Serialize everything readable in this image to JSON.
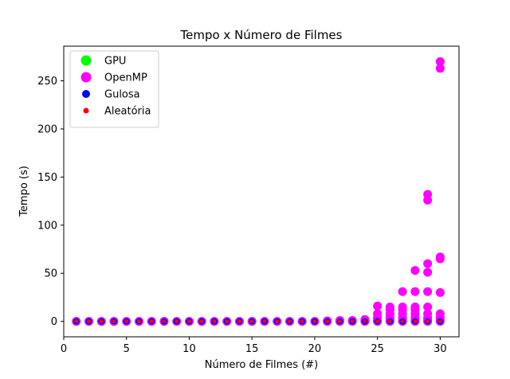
{
  "chart_data": {
    "type": "scatter",
    "title": "Tempo x Número de Filmes",
    "xlabel": "Número de Filmes (#)",
    "ylabel": "Tempo (s)",
    "xlim": [
      0,
      31.5
    ],
    "ylim": [
      -16,
      286
    ],
    "xticks": [
      0,
      5,
      10,
      15,
      20,
      25,
      30
    ],
    "yticks": [
      0,
      50,
      100,
      150,
      200,
      250
    ],
    "legend_position": "upper-left",
    "grid": false,
    "series": [
      {
        "name": "GPU",
        "color": "#00ff00",
        "marker_size": 11,
        "points": [
          [
            1,
            0
          ],
          [
            2,
            0
          ],
          [
            3,
            0
          ],
          [
            4,
            0
          ],
          [
            5,
            0
          ],
          [
            6,
            0
          ],
          [
            7,
            0
          ],
          [
            8,
            0
          ],
          [
            9,
            0
          ],
          [
            10,
            0
          ],
          [
            11,
            0
          ],
          [
            12,
            0
          ],
          [
            13,
            0
          ],
          [
            14,
            0
          ],
          [
            15,
            0
          ],
          [
            16,
            0
          ],
          [
            17,
            0
          ],
          [
            18,
            0
          ],
          [
            19,
            0
          ],
          [
            20,
            0
          ],
          [
            21,
            0
          ],
          [
            22,
            0
          ],
          [
            23,
            0
          ],
          [
            24,
            0
          ],
          [
            25,
            0
          ],
          [
            26,
            0
          ],
          [
            27,
            0
          ],
          [
            28,
            0
          ],
          [
            29,
            0
          ],
          [
            30,
            0
          ],
          [
            24,
            0.5
          ],
          [
            25,
            0.5
          ],
          [
            26,
            0.5
          ],
          [
            27,
            0.5
          ],
          [
            28,
            0.5
          ],
          [
            29,
            0.5
          ],
          [
            30,
            0.5
          ]
        ]
      },
      {
        "name": "OpenMP",
        "color": "#ff00ff",
        "marker_size": 11,
        "points": [
          [
            1,
            0
          ],
          [
            2,
            0
          ],
          [
            3,
            0
          ],
          [
            4,
            0
          ],
          [
            5,
            0
          ],
          [
            6,
            0
          ],
          [
            7,
            0
          ],
          [
            8,
            0
          ],
          [
            9,
            0
          ],
          [
            10,
            0
          ],
          [
            11,
            0
          ],
          [
            12,
            0
          ],
          [
            13,
            0
          ],
          [
            14,
            0
          ],
          [
            15,
            0
          ],
          [
            16,
            0
          ],
          [
            17,
            0
          ],
          [
            18,
            0
          ],
          [
            19,
            0
          ],
          [
            20,
            0
          ],
          [
            21,
            0
          ],
          [
            21,
            0.5
          ],
          [
            22,
            0
          ],
          [
            22,
            1
          ],
          [
            23,
            0
          ],
          [
            23,
            1
          ],
          [
            24,
            0
          ],
          [
            24,
            1
          ],
          [
            24,
            2
          ],
          [
            25,
            0
          ],
          [
            25,
            2
          ],
          [
            25,
            4
          ],
          [
            25,
            8
          ],
          [
            25,
            16
          ],
          [
            26,
            0
          ],
          [
            26,
            2
          ],
          [
            26,
            4
          ],
          [
            26,
            8
          ],
          [
            26,
            12
          ],
          [
            26,
            15
          ],
          [
            27,
            0
          ],
          [
            27,
            2
          ],
          [
            27,
            4
          ],
          [
            27,
            8
          ],
          [
            27,
            12
          ],
          [
            27,
            15
          ],
          [
            27,
            31
          ],
          [
            28,
            0
          ],
          [
            28,
            2
          ],
          [
            28,
            4
          ],
          [
            28,
            8
          ],
          [
            28,
            12
          ],
          [
            28,
            15
          ],
          [
            28,
            31
          ],
          [
            28,
            53
          ],
          [
            29,
            0
          ],
          [
            29,
            2
          ],
          [
            29,
            4
          ],
          [
            29,
            8
          ],
          [
            29,
            15
          ],
          [
            29,
            31
          ],
          [
            29,
            51
          ],
          [
            29,
            60
          ],
          [
            29,
            126
          ],
          [
            29,
            132
          ],
          [
            30,
            0
          ],
          [
            30,
            2
          ],
          [
            30,
            4
          ],
          [
            30,
            8
          ],
          [
            30,
            30
          ],
          [
            30,
            65
          ],
          [
            30,
            67
          ],
          [
            30,
            263
          ],
          [
            30,
            270
          ]
        ]
      },
      {
        "name": "Gulosa",
        "color": "#0000ff",
        "marker_size": 8,
        "points": [
          [
            1,
            0
          ],
          [
            2,
            0
          ],
          [
            3,
            0
          ],
          [
            4,
            0
          ],
          [
            5,
            0
          ],
          [
            6,
            0
          ],
          [
            7,
            0
          ],
          [
            8,
            0
          ],
          [
            9,
            0
          ],
          [
            10,
            0
          ],
          [
            11,
            0
          ],
          [
            12,
            0
          ],
          [
            13,
            0
          ],
          [
            14,
            0
          ],
          [
            15,
            0
          ],
          [
            16,
            0
          ],
          [
            17,
            0
          ],
          [
            18,
            0
          ],
          [
            19,
            0
          ],
          [
            20,
            0
          ],
          [
            21,
            0
          ],
          [
            22,
            0
          ],
          [
            23,
            0
          ],
          [
            24,
            0
          ],
          [
            25,
            0
          ],
          [
            26,
            0
          ],
          [
            27,
            0
          ],
          [
            28,
            0
          ],
          [
            29,
            0
          ],
          [
            30,
            0
          ]
        ]
      },
      {
        "name": "Aleatória",
        "color": "#ff0000",
        "marker_size": 5,
        "points": [
          [
            1,
            0
          ],
          [
            2,
            0
          ],
          [
            3,
            0
          ],
          [
            4,
            0
          ],
          [
            5,
            0
          ],
          [
            6,
            0
          ],
          [
            7,
            0
          ],
          [
            8,
            0
          ],
          [
            9,
            0
          ],
          [
            10,
            0
          ],
          [
            11,
            0
          ],
          [
            12,
            0
          ],
          [
            13,
            0
          ],
          [
            14,
            0
          ],
          [
            15,
            0
          ],
          [
            16,
            0
          ],
          [
            17,
            0
          ],
          [
            18,
            0
          ],
          [
            19,
            0
          ],
          [
            20,
            0
          ],
          [
            21,
            0
          ],
          [
            22,
            0
          ],
          [
            23,
            0
          ],
          [
            24,
            0
          ],
          [
            25,
            0
          ],
          [
            26,
            0
          ],
          [
            27,
            0
          ],
          [
            28,
            0
          ],
          [
            29,
            0
          ],
          [
            30,
            0
          ]
        ]
      }
    ]
  }
}
